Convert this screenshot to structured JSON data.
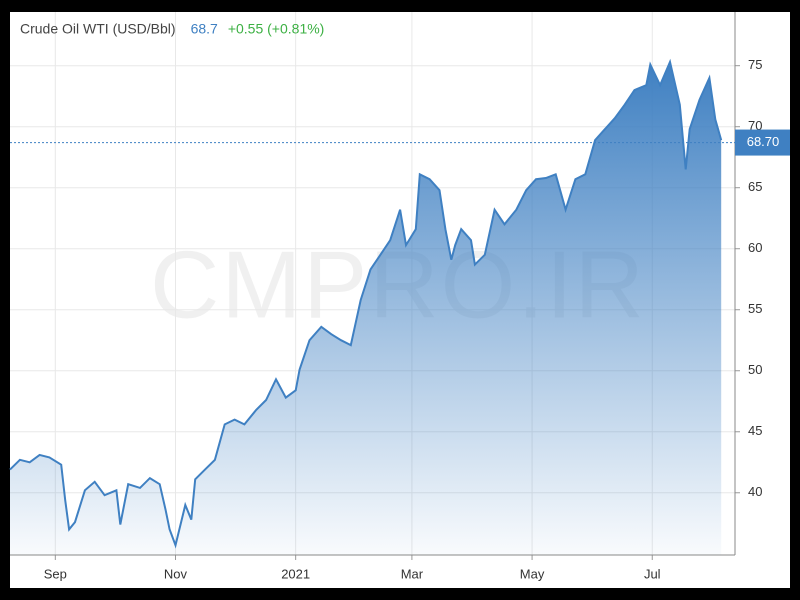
{
  "chart_data": {
    "type": "area",
    "title": "Crude Oil WTI (USD/Bbl)",
    "last": 68.7,
    "last_label": "68.70",
    "change": "+0.55 (+0.81%)",
    "watermark": "CMPRO.IR",
    "color": "#3f80c2",
    "grid": true,
    "x": [
      -23,
      -18,
      -13,
      -8,
      -3,
      3,
      5,
      7,
      10,
      15,
      20,
      25,
      31,
      33,
      37,
      43,
      48,
      53,
      56,
      58,
      61,
      66,
      69,
      71,
      76,
      81,
      86,
      91,
      96,
      102,
      107,
      112,
      117,
      122,
      124,
      129,
      135,
      140,
      145,
      150,
      155,
      160,
      165,
      170,
      175,
      178,
      183,
      185,
      190,
      195,
      198,
      201,
      203,
      206,
      211,
      213,
      218,
      223,
      228,
      234,
      239,
      244,
      249,
      254,
      259,
      264,
      269,
      274,
      279,
      284,
      289,
      294,
      300,
      302,
      307,
      312,
      317,
      320,
      322,
      327,
      332,
      335,
      338
    ],
    "values": [
      41.9,
      42.7,
      42.5,
      43.1,
      42.9,
      42.3,
      39.4,
      37.0,
      37.6,
      40.2,
      40.9,
      39.8,
      40.2,
      37.4,
      40.7,
      40.4,
      41.2,
      40.7,
      38.6,
      37.0,
      35.7,
      39.0,
      37.8,
      41.1,
      41.9,
      42.7,
      45.6,
      46.0,
      45.6,
      46.8,
      47.6,
      49.3,
      47.8,
      48.4,
      50.1,
      52.5,
      53.6,
      53.0,
      52.5,
      52.1,
      55.8,
      58.3,
      59.5,
      60.7,
      63.2,
      60.3,
      61.6,
      66.1,
      65.7,
      64.8,
      61.6,
      59.1,
      60.3,
      61.6,
      60.7,
      58.7,
      59.5,
      63.2,
      62.0,
      63.2,
      64.8,
      65.7,
      65.8,
      66.1,
      63.2,
      65.7,
      66.1,
      68.9,
      69.8,
      70.7,
      71.8,
      73.0,
      73.4,
      75.1,
      73.4,
      75.3,
      71.8,
      66.5,
      69.8,
      72.2,
      74.0,
      70.6,
      68.9
    ],
    "xlim": [
      -23,
      345
    ],
    "xticks": [
      {
        "value": 0,
        "label": "Sep"
      },
      {
        "value": 61,
        "label": "Nov"
      },
      {
        "value": 122,
        "label": "2021"
      },
      {
        "value": 181,
        "label": "Mar"
      },
      {
        "value": 242,
        "label": "May"
      },
      {
        "value": 303,
        "label": "Jul"
      }
    ],
    "ylim": [
      34.9,
      79.4
    ],
    "yticks": [
      40,
      45,
      50,
      55,
      60,
      65,
      70,
      75
    ]
  }
}
